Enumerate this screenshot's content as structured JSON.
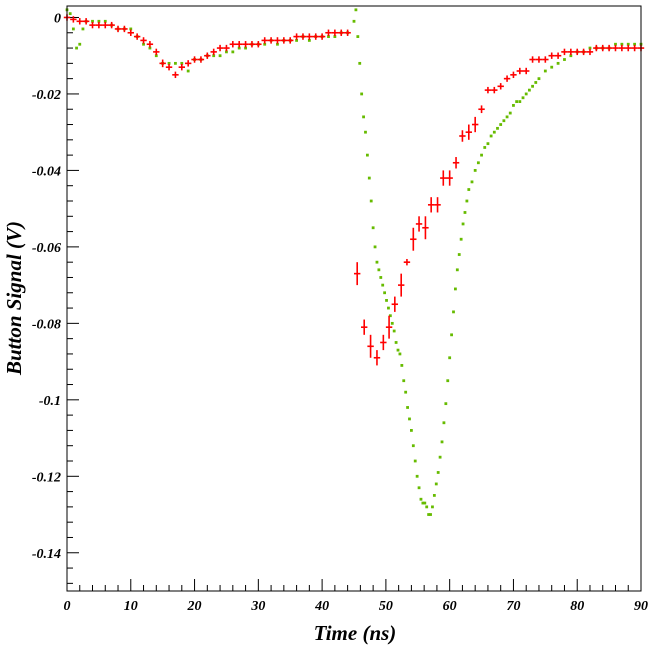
{
  "chart_data": {
    "type": "scatter",
    "title": "",
    "xlabel": "Time (ns)",
    "ylabel": "Button Signal (V)",
    "xlim": [
      0,
      90
    ],
    "ylim": [
      -0.15,
      0.003
    ],
    "x_ticks": [
      0,
      10,
      20,
      30,
      40,
      50,
      60,
      70,
      80,
      90
    ],
    "x_tick_labels": [
      "0",
      "10",
      "20",
      "30",
      "40",
      "50",
      "60",
      "70",
      "80",
      "90"
    ],
    "y_ticks": [
      0,
      -0.02,
      -0.04,
      -0.06,
      -0.08,
      -0.1,
      -0.12,
      -0.14
    ],
    "y_tick_labels": [
      "0",
      "-0.02",
      "-0.04",
      "-0.06",
      "-0.08",
      "-0.1",
      "-0.12",
      "-0.14"
    ],
    "grid": false,
    "legend": "none",
    "series": [
      {
        "marker": "dots",
        "color": "#66bb00",
        "points": [
          [
            0,
            0.002
          ],
          [
            0.5,
            0.001
          ],
          [
            1,
            -0.003
          ],
          [
            1.5,
            -0.008
          ],
          [
            2,
            -0.007
          ],
          [
            2.5,
            -0.003
          ],
          [
            3,
            -0.001
          ],
          [
            4,
            -0.001
          ],
          [
            5,
            -0.001
          ],
          [
            6,
            -0.001
          ],
          [
            7,
            -0.002
          ],
          [
            8,
            -0.003
          ],
          [
            9,
            -0.003
          ],
          [
            10,
            -0.003
          ],
          [
            11,
            -0.005
          ],
          [
            12,
            -0.007
          ],
          [
            13,
            -0.008
          ],
          [
            14,
            -0.01
          ],
          [
            15,
            -0.012
          ],
          [
            16,
            -0.012
          ],
          [
            17,
            -0.012
          ],
          [
            18,
            -0.012
          ],
          [
            19,
            -0.014
          ],
          [
            20,
            -0.011
          ],
          [
            21,
            -0.011
          ],
          [
            22,
            -0.01
          ],
          [
            23,
            -0.01
          ],
          [
            24,
            -0.01
          ],
          [
            25,
            -0.009
          ],
          [
            26,
            -0.009
          ],
          [
            27,
            -0.008
          ],
          [
            28,
            -0.008
          ],
          [
            29,
            -0.007
          ],
          [
            30,
            -0.007
          ],
          [
            31,
            -0.007
          ],
          [
            32,
            -0.006
          ],
          [
            33,
            -0.007
          ],
          [
            34,
            -0.006
          ],
          [
            35,
            -0.006
          ],
          [
            36,
            -0.006
          ],
          [
            37,
            -0.005
          ],
          [
            38,
            -0.006
          ],
          [
            39,
            -0.005
          ],
          [
            40,
            -0.005
          ],
          [
            41,
            -0.005
          ],
          [
            42,
            -0.005
          ],
          [
            43,
            -0.004
          ],
          [
            44,
            -0.004
          ],
          [
            45,
            -0.001
          ],
          [
            45.3,
            0.002
          ],
          [
            45.6,
            -0.005
          ],
          [
            45.9,
            -0.012
          ],
          [
            46.2,
            -0.02
          ],
          [
            46.5,
            -0.026
          ],
          [
            46.8,
            -0.03
          ],
          [
            47.1,
            -0.036
          ],
          [
            47.4,
            -0.042
          ],
          [
            47.7,
            -0.048
          ],
          [
            48,
            -0.055
          ],
          [
            48.3,
            -0.06
          ],
          [
            48.6,
            -0.064
          ],
          [
            48.9,
            -0.066
          ],
          [
            49.2,
            -0.068
          ],
          [
            49.5,
            -0.07
          ],
          [
            49.8,
            -0.072
          ],
          [
            50.1,
            -0.074
          ],
          [
            50.4,
            -0.076
          ],
          [
            50.7,
            -0.078
          ],
          [
            51,
            -0.08
          ],
          [
            51.3,
            -0.082
          ],
          [
            51.6,
            -0.085
          ],
          [
            51.9,
            -0.087
          ],
          [
            52.2,
            -0.088
          ],
          [
            52.5,
            -0.091
          ],
          [
            52.8,
            -0.095
          ],
          [
            53.1,
            -0.098
          ],
          [
            53.4,
            -0.102
          ],
          [
            53.7,
            -0.105
          ],
          [
            54,
            -0.108
          ],
          [
            54.3,
            -0.112
          ],
          [
            54.6,
            -0.116
          ],
          [
            54.9,
            -0.12
          ],
          [
            55.2,
            -0.123
          ],
          [
            55.5,
            -0.126
          ],
          [
            55.8,
            -0.127
          ],
          [
            56.1,
            -0.127
          ],
          [
            56.4,
            -0.128
          ],
          [
            56.7,
            -0.13
          ],
          [
            57,
            -0.13
          ],
          [
            57.3,
            -0.128
          ],
          [
            57.6,
            -0.125
          ],
          [
            57.9,
            -0.122
          ],
          [
            58.2,
            -0.119
          ],
          [
            58.5,
            -0.115
          ],
          [
            58.8,
            -0.111
          ],
          [
            59.1,
            -0.106
          ],
          [
            59.4,
            -0.101
          ],
          [
            59.7,
            -0.095
          ],
          [
            60,
            -0.089
          ],
          [
            60.3,
            -0.083
          ],
          [
            60.6,
            -0.077
          ],
          [
            60.9,
            -0.071
          ],
          [
            61.2,
            -0.066
          ],
          [
            61.5,
            -0.062
          ],
          [
            61.8,
            -0.058
          ],
          [
            62.1,
            -0.054
          ],
          [
            62.4,
            -0.051
          ],
          [
            62.7,
            -0.048
          ],
          [
            63,
            -0.045
          ],
          [
            63.5,
            -0.043
          ],
          [
            64,
            -0.04
          ],
          [
            64.5,
            -0.038
          ],
          [
            65,
            -0.036
          ],
          [
            65.5,
            -0.034
          ],
          [
            66,
            -0.033
          ],
          [
            66.5,
            -0.031
          ],
          [
            67,
            -0.03
          ],
          [
            67.5,
            -0.029
          ],
          [
            68,
            -0.028
          ],
          [
            68.5,
            -0.027
          ],
          [
            69,
            -0.026
          ],
          [
            69.5,
            -0.025
          ],
          [
            70,
            -0.023
          ],
          [
            70.5,
            -0.022
          ],
          [
            71,
            -0.022
          ],
          [
            71.5,
            -0.021
          ],
          [
            72,
            -0.02
          ],
          [
            72.5,
            -0.019
          ],
          [
            73,
            -0.018
          ],
          [
            73.5,
            -0.017
          ],
          [
            74,
            -0.016
          ],
          [
            75,
            -0.014
          ],
          [
            76,
            -0.013
          ],
          [
            77,
            -0.012
          ],
          [
            78,
            -0.011
          ],
          [
            79,
            -0.01
          ],
          [
            80,
            -0.009
          ],
          [
            81,
            -0.009
          ],
          [
            82,
            -0.008
          ],
          [
            83,
            -0.008
          ],
          [
            84,
            -0.008
          ],
          [
            85,
            -0.008
          ],
          [
            86,
            -0.007
          ],
          [
            87,
            -0.007
          ],
          [
            88,
            -0.007
          ],
          [
            89,
            -0.007
          ],
          [
            90,
            -0.007
          ]
        ]
      },
      {
        "marker": "error-bars",
        "color": "#ff0000",
        "points": [
          [
            0,
            0,
            0.0005
          ],
          [
            1,
            -0.0005,
            0.0005
          ],
          [
            2,
            -0.001,
            0.0005
          ],
          [
            3,
            -0.001,
            0.0005
          ],
          [
            4,
            -0.002,
            0.0005
          ],
          [
            5,
            -0.002,
            0.0005
          ],
          [
            6,
            -0.002,
            0.0005
          ],
          [
            7,
            -0.002,
            0.0005
          ],
          [
            8,
            -0.003,
            0.0005
          ],
          [
            9,
            -0.003,
            0.0005
          ],
          [
            10,
            -0.004,
            0.0005
          ],
          [
            11,
            -0.005,
            0.0005
          ],
          [
            12,
            -0.006,
            0.0005
          ],
          [
            13,
            -0.007,
            0.0005
          ],
          [
            14,
            -0.009,
            0.0005
          ],
          [
            15,
            -0.012,
            0.001
          ],
          [
            16,
            -0.013,
            0.0005
          ],
          [
            17,
            -0.015,
            0.0008
          ],
          [
            18,
            -0.013,
            0.0005
          ],
          [
            19,
            -0.012,
            0.0005
          ],
          [
            20,
            -0.011,
            0.0005
          ],
          [
            21,
            -0.011,
            0.0005
          ],
          [
            22,
            -0.01,
            0.0005
          ],
          [
            23,
            -0.009,
            0.0005
          ],
          [
            24,
            -0.008,
            0.0005
          ],
          [
            25,
            -0.008,
            0.0005
          ],
          [
            26,
            -0.007,
            0.0005
          ],
          [
            27,
            -0.007,
            0.0005
          ],
          [
            28,
            -0.007,
            0.0005
          ],
          [
            29,
            -0.007,
            0.0005
          ],
          [
            30,
            -0.007,
            0.0005
          ],
          [
            31,
            -0.006,
            0.0005
          ],
          [
            32,
            -0.006,
            0.0005
          ],
          [
            33,
            -0.006,
            0.0005
          ],
          [
            34,
            -0.006,
            0.0005
          ],
          [
            35,
            -0.006,
            0.0005
          ],
          [
            36,
            -0.005,
            0.0005
          ],
          [
            37,
            -0.005,
            0.0005
          ],
          [
            38,
            -0.005,
            0.0005
          ],
          [
            39,
            -0.005,
            0.0005
          ],
          [
            40,
            -0.005,
            0.0005
          ],
          [
            41,
            -0.004,
            0.0005
          ],
          [
            42,
            -0.004,
            0.0005
          ],
          [
            43,
            -0.004,
            0.0005
          ],
          [
            44,
            -0.004,
            0.0005
          ],
          [
            45.5,
            -0.067,
            0.003
          ],
          [
            46.6,
            -0.081,
            0.002
          ],
          [
            47.6,
            -0.086,
            0.003
          ],
          [
            48.6,
            -0.089,
            0.002
          ],
          [
            49.6,
            -0.085,
            0.002
          ],
          [
            50.5,
            -0.081,
            0.003
          ],
          [
            51.4,
            -0.075,
            0.002
          ],
          [
            52.4,
            -0.07,
            0.003
          ],
          [
            53.3,
            -0.064,
            0.0008
          ],
          [
            54.3,
            -0.058,
            0.003
          ],
          [
            55.2,
            -0.054,
            0.002
          ],
          [
            56.2,
            -0.055,
            0.003
          ],
          [
            57.1,
            -0.049,
            0.002
          ],
          [
            58.1,
            -0.049,
            0.002
          ],
          [
            59,
            -0.042,
            0.002
          ],
          [
            60,
            -0.042,
            0.002
          ],
          [
            61,
            -0.038,
            0.0015
          ],
          [
            62,
            -0.031,
            0.0015
          ],
          [
            63,
            -0.03,
            0.002
          ],
          [
            64,
            -0.028,
            0.002
          ],
          [
            65,
            -0.024,
            0.001
          ],
          [
            66,
            -0.019,
            0.0008
          ],
          [
            67,
            -0.019,
            0.0008
          ],
          [
            68,
            -0.018,
            0.0008
          ],
          [
            69,
            -0.016,
            0.0008
          ],
          [
            70,
            -0.015,
            0.0008
          ],
          [
            71,
            -0.014,
            0.0008
          ],
          [
            72,
            -0.014,
            0.0008
          ],
          [
            73,
            -0.011,
            0.0005
          ],
          [
            74,
            -0.011,
            0.0005
          ],
          [
            75,
            -0.011,
            0.0005
          ],
          [
            76,
            -0.01,
            0.0005
          ],
          [
            77,
            -0.01,
            0.0005
          ],
          [
            78,
            -0.009,
            0.0005
          ],
          [
            79,
            -0.009,
            0.0005
          ],
          [
            80,
            -0.009,
            0.0005
          ],
          [
            81,
            -0.009,
            0.0005
          ],
          [
            82,
            -0.009,
            0.0005
          ],
          [
            83,
            -0.008,
            0.0005
          ],
          [
            84,
            -0.008,
            0.0005
          ],
          [
            85,
            -0.008,
            0.0005
          ],
          [
            86,
            -0.008,
            0.0005
          ],
          [
            87,
            -0.008,
            0.0005
          ],
          [
            88,
            -0.008,
            0.0005
          ],
          [
            89,
            -0.008,
            0.0005
          ],
          [
            90,
            -0.008,
            0.0005
          ]
        ]
      }
    ]
  }
}
